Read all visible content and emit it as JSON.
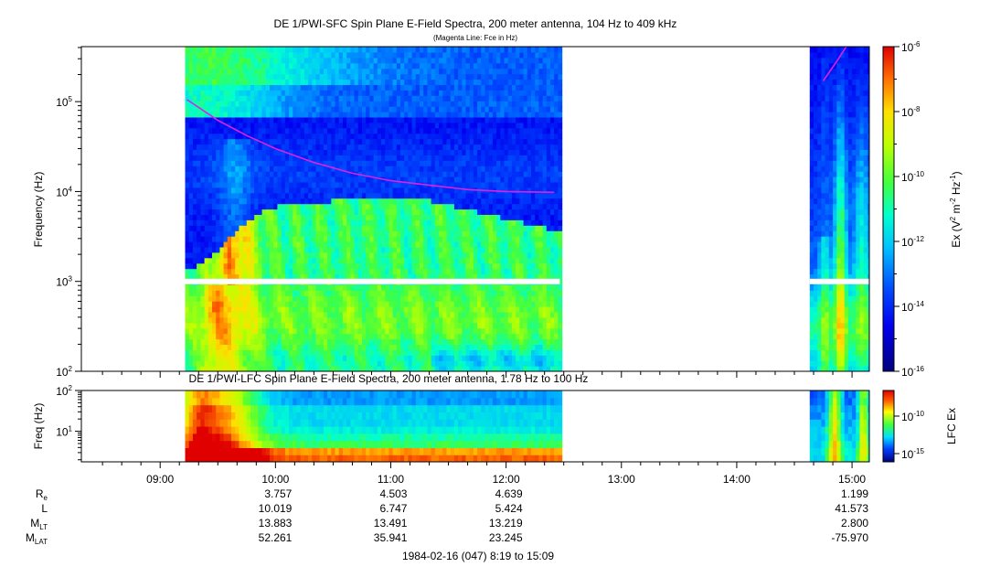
{
  "chart_data": [
    {
      "type": "heatmap",
      "title": "DE 1/PWI-SFC  Spin Plane E-Field Spectra, 200 meter antenna, 104 Hz to 409 kHz",
      "subtitle": "(Magenta Line: Fce in Hz)",
      "ylabel": "Frequency (Hz)",
      "yscale": "log",
      "ylim": [
        100,
        409000
      ],
      "yticks": [
        {
          "v": 100,
          "b": "10",
          "e": "2"
        },
        {
          "v": 1000,
          "b": "10",
          "e": "3"
        },
        {
          "v": 10000,
          "b": "10",
          "e": "4"
        },
        {
          "v": 100000,
          "b": "10",
          "e": "5"
        }
      ],
      "colorbar": {
        "label": {
          "base": "Ex (V",
          "e1": "2",
          "mid": " m",
          "e2": "-2",
          "mid2": " Hz",
          "e3": "-1",
          "end": ")"
        },
        "scale": "log",
        "range": [
          1e-16,
          1e-06
        ],
        "ticks": [
          {
            "v": -6,
            "b": "10",
            "e": "-6"
          },
          {
            "v": -8,
            "b": "10",
            "e": "-8"
          },
          {
            "v": -10,
            "b": "10",
            "e": "-10"
          },
          {
            "v": -12,
            "b": "10",
            "e": "-12"
          },
          {
            "v": -14,
            "b": "10",
            "e": "-14"
          },
          {
            "v": -16,
            "b": "10",
            "e": "-16"
          }
        ]
      },
      "data_segments": [
        {
          "start": "09:13",
          "end": "12:28"
        },
        {
          "start": "14:38",
          "end": "15:09"
        }
      ],
      "data_gap_band_hz": [
        930,
        1070
      ],
      "fce_line": [
        {
          "time": "09:14",
          "hz": 105000
        },
        {
          "time": "09:30",
          "hz": 62000
        },
        {
          "time": "09:45",
          "hz": 42000
        },
        {
          "time": "10:00",
          "hz": 30000
        },
        {
          "time": "10:20",
          "hz": 21000
        },
        {
          "time": "10:40",
          "hz": 16000
        },
        {
          "time": "11:00",
          "hz": 13200
        },
        {
          "time": "11:20",
          "hz": 11800
        },
        {
          "time": "11:40",
          "hz": 10500
        },
        {
          "time": "12:00",
          "hz": 10000
        },
        {
          "time": "12:25",
          "hz": 9800
        }
      ],
      "fce_line_2": [
        {
          "time": "14:45",
          "hz": 170000
        },
        {
          "time": "14:52",
          "hz": 280000
        },
        {
          "time": "14:57",
          "hz": 409000
        }
      ],
      "line_color": "#e020e0"
    },
    {
      "type": "heatmap",
      "title": "DE 1/PWI-LFC  Spin Plane E-Field Spectra, 200 meter antenna, 1.78 Hz to 100 Hz",
      "ylabel": "Freq (Hz)",
      "yscale": "log",
      "ylim": [
        1.78,
        100
      ],
      "yticks": [
        {
          "v": 10,
          "b": "10",
          "e": "1"
        },
        {
          "v": 100,
          "b": "10",
          "e": "2"
        }
      ],
      "colorbar": {
        "label": "LFC Ex",
        "scale": "log",
        "ticks": [
          {
            "v": -10,
            "b": "10",
            "e": "-10"
          },
          {
            "v": -15,
            "b": "10",
            "e": "-15"
          }
        ]
      },
      "data_segments": [
        {
          "start": "09:13",
          "end": "12:28"
        },
        {
          "start": "14:38",
          "end": "15:09"
        }
      ]
    }
  ],
  "x_axis": {
    "time_range": [
      "08:19",
      "15:09"
    ],
    "ticks": [
      "09:00",
      "10:00",
      "11:00",
      "12:00",
      "13:00",
      "14:00",
      "15:00"
    ]
  },
  "ephemeris": {
    "rows": [
      {
        "label": {
          "base": "R",
          "sub": "e"
        },
        "values": [
          "3.757",
          "4.503",
          "4.639",
          "1.199"
        ]
      },
      {
        "label": {
          "base": "L",
          "sub": ""
        },
        "values": [
          "10.019",
          "6.747",
          "5.424",
          "41.573"
        ]
      },
      {
        "label": {
          "base": "M",
          "sub": "LT"
        },
        "values": [
          "13.883",
          "13.491",
          "13.219",
          "2.800"
        ]
      },
      {
        "label": {
          "base": "M",
          "sub": "LAT"
        },
        "values": [
          "52.261",
          "35.941",
          "23.245",
          "-75.970"
        ]
      }
    ],
    "value_times": [
      "10:00",
      "11:00",
      "12:00",
      "15:00"
    ]
  },
  "footer": "1984-02-16 (047) 8:19 to 15:09"
}
